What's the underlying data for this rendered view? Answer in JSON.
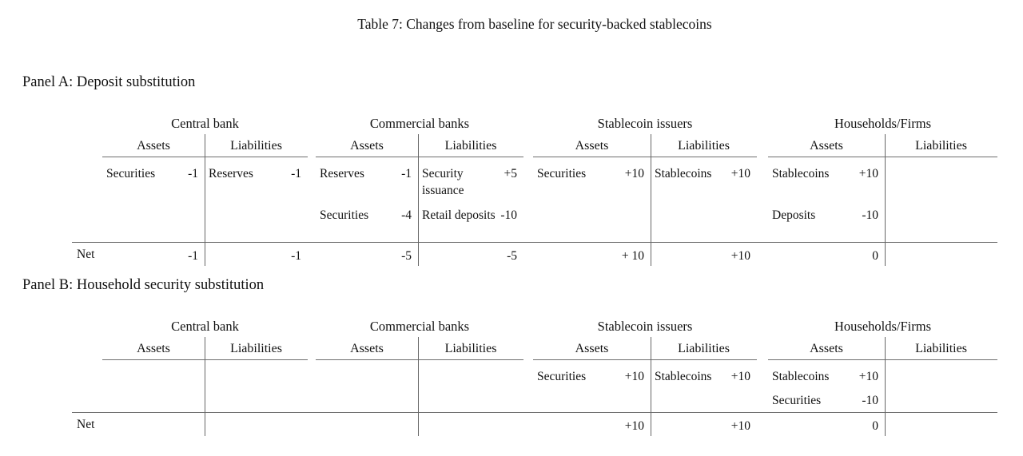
{
  "caption": "Table 7: Changes from baseline for security-backed stablecoins",
  "panels": {
    "a": {
      "heading": "Panel A: Deposit substitution",
      "net_label": "Net",
      "groups": [
        {
          "name": "Central bank",
          "assets": {
            "header": "Assets",
            "rows": [
              {
                "name": "Securities",
                "value": "-1"
              }
            ],
            "net": "-1"
          },
          "liabilities": {
            "header": "Liabilities",
            "rows": [
              {
                "name": "Reserves",
                "value": "-1"
              }
            ],
            "net": "-1"
          }
        },
        {
          "name": "Commercial banks",
          "assets": {
            "header": "Assets",
            "rows": [
              {
                "name": "Reserves",
                "value": "-1"
              },
              {
                "name": "Securities",
                "value": "-4"
              }
            ],
            "net": "-5"
          },
          "liabilities": {
            "header": "Liabilities",
            "rows": [
              {
                "name": "Security issuance",
                "value": "+5"
              },
              {
                "name": "Retail deposits",
                "value": "-10"
              }
            ],
            "net": "-5"
          }
        },
        {
          "name": "Stablecoin issuers",
          "assets": {
            "header": "Assets",
            "rows": [
              {
                "name": "Securities",
                "value": "+10"
              }
            ],
            "net": "+ 10"
          },
          "liabilities": {
            "header": "Liabilities",
            "rows": [
              {
                "name": "Stablecoins",
                "value": "+10"
              }
            ],
            "net": "+10"
          }
        },
        {
          "name": "Households/Firms",
          "assets": {
            "header": "Assets",
            "rows": [
              {
                "name": "Stablecoins",
                "value": "+10"
              },
              {
                "name": "Deposits",
                "value": "-10"
              }
            ],
            "net": "0"
          },
          "liabilities": {
            "header": "Liabilities",
            "rows": [],
            "net": ""
          }
        }
      ]
    },
    "b": {
      "heading": "Panel B: Household security substitution",
      "net_label": "Net",
      "groups": [
        {
          "name": "Central bank",
          "assets": {
            "header": "Assets",
            "rows": [],
            "net": ""
          },
          "liabilities": {
            "header": "Liabilities",
            "rows": [],
            "net": ""
          }
        },
        {
          "name": "Commercial banks",
          "assets": {
            "header": "Assets",
            "rows": [],
            "net": ""
          },
          "liabilities": {
            "header": "Liabilities",
            "rows": [],
            "net": ""
          }
        },
        {
          "name": "Stablecoin issuers",
          "assets": {
            "header": "Assets",
            "rows": [
              {
                "name": "Securities",
                "value": "+10"
              }
            ],
            "net": "+10"
          },
          "liabilities": {
            "header": "Liabilities",
            "rows": [
              {
                "name": "Stablecoins",
                "value": "+10"
              }
            ],
            "net": "+10"
          }
        },
        {
          "name": "Households/Firms",
          "assets": {
            "header": "Assets",
            "rows": [
              {
                "name": "Stablecoins",
                "value": "+10"
              },
              {
                "name": "Securities",
                "value": "-10"
              }
            ],
            "net": "0"
          },
          "liabilities": {
            "header": "Liabilities",
            "rows": [],
            "net": ""
          }
        }
      ]
    }
  },
  "colors": {
    "text": "#111111",
    "rule": "#6e6e6e"
  }
}
